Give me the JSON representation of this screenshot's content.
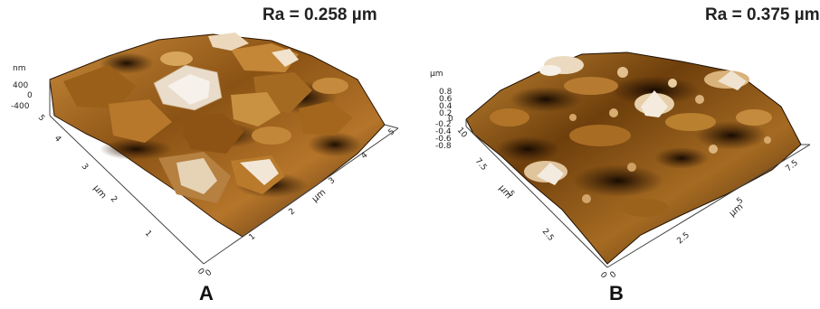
{
  "panels": [
    {
      "letter": "A",
      "ra_text": "Ra = 0.258 µm",
      "z_unit": "nm",
      "z_ticks": [
        "400",
        "0",
        "-400"
      ],
      "y_axis_unit": "µm",
      "y_ticks": [
        "0",
        "1",
        "2",
        "3",
        "4",
        "5"
      ],
      "x_axis_unit": "µm",
      "x_ticks": [
        "0",
        "1",
        "2",
        "3",
        "4",
        "5"
      ]
    },
    {
      "letter": "B",
      "ra_text": "Ra = 0.375 µm",
      "z_unit": "µm",
      "z_ticks": [
        "0.8",
        "0.6",
        "0.4",
        "0.2",
        "0",
        "-0.2",
        "-0.4",
        "-0.6",
        "-0.8"
      ],
      "y_axis_unit": "µm",
      "y_ticks": [
        "0",
        "2.5",
        "5",
        "7.5",
        "10"
      ],
      "x_axis_unit": "µm",
      "x_ticks": [
        "0",
        "2.5",
        "5",
        "7.5"
      ]
    }
  ],
  "colors": {
    "surface_dark": "#2a1604",
    "surface_mid": "#a0611a",
    "surface_light": "#e8c27a",
    "surface_peak": "#f4ece0"
  }
}
